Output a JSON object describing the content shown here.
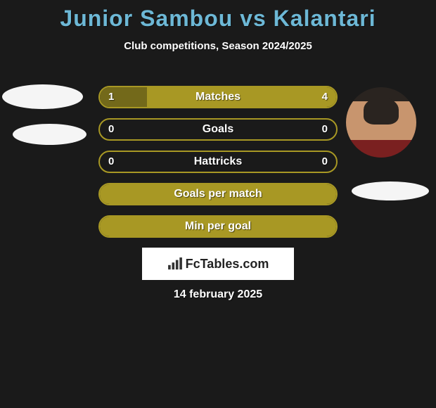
{
  "title": "Junior Sambou vs Kalantari",
  "subtitle": "Club competitions, Season 2024/2025",
  "date": "14 february 2025",
  "logo_text": "FcTables.com",
  "colors": {
    "title": "#6db8d6",
    "bar_border": "#a89824",
    "bar_fill_dark": "#73691a",
    "bar_fill_light": "#a89824",
    "bg": "#1a1a1a"
  },
  "stats": [
    {
      "label": "Matches",
      "left_val": "1",
      "right_val": "4",
      "left_pct": 20,
      "right_pct": 80,
      "has_values": true
    },
    {
      "label": "Goals",
      "left_val": "0",
      "right_val": "0",
      "left_pct": 0,
      "right_pct": 0,
      "has_values": true
    },
    {
      "label": "Hattricks",
      "left_val": "0",
      "right_val": "0",
      "left_pct": 0,
      "right_pct": 0,
      "has_values": true
    },
    {
      "label": "Goals per match",
      "left_val": "",
      "right_val": "",
      "left_pct": 100,
      "right_pct": 0,
      "has_values": false
    },
    {
      "label": "Min per goal",
      "left_val": "",
      "right_val": "",
      "left_pct": 100,
      "right_pct": 0,
      "has_values": false
    }
  ]
}
